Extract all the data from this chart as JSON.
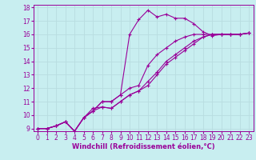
{
  "xlabel": "Windchill (Refroidissement éolien,°C)",
  "line_color": "#990099",
  "bg_color": "#c8eef0",
  "grid_color": "#b8dde0",
  "xlim": [
    -0.5,
    23.5
  ],
  "ylim": [
    8.8,
    18.2
  ],
  "xticks": [
    0,
    1,
    2,
    3,
    4,
    5,
    6,
    7,
    8,
    9,
    10,
    11,
    12,
    13,
    14,
    15,
    16,
    17,
    18,
    19,
    20,
    21,
    22,
    23
  ],
  "yticks": [
    9,
    10,
    11,
    12,
    13,
    14,
    15,
    16,
    17,
    18
  ],
  "lines": [
    {
      "x": [
        0,
        1,
        2,
        3,
        4,
        5,
        6,
        7,
        8,
        9,
        10,
        11,
        12,
        13,
        14,
        15,
        16,
        17,
        18,
        19,
        20,
        21,
        22,
        23
      ],
      "y": [
        9.0,
        9.0,
        9.2,
        9.5,
        8.8,
        9.8,
        10.3,
        11.0,
        11.0,
        11.5,
        16.0,
        17.1,
        17.8,
        17.3,
        17.5,
        17.2,
        17.2,
        16.8,
        16.2,
        15.9,
        16.0,
        16.0,
        16.0,
        16.1
      ]
    },
    {
      "x": [
        0,
        1,
        2,
        3,
        4,
        5,
        6,
        7,
        8,
        9,
        10,
        11,
        12,
        13,
        14,
        15,
        16,
        17,
        18,
        19,
        20,
        21,
        22,
        23
      ],
      "y": [
        9.0,
        9.0,
        9.2,
        9.5,
        8.8,
        9.8,
        10.3,
        11.0,
        11.0,
        11.5,
        12.0,
        12.2,
        13.7,
        14.5,
        15.0,
        15.5,
        15.8,
        16.0,
        16.0,
        16.0,
        16.0,
        16.0,
        16.0,
        16.1
      ]
    },
    {
      "x": [
        0,
        1,
        2,
        3,
        4,
        5,
        6,
        7,
        8,
        9,
        10,
        11,
        12,
        13,
        14,
        15,
        16,
        17,
        18,
        19,
        20,
        21,
        22,
        23
      ],
      "y": [
        9.0,
        9.0,
        9.2,
        9.5,
        8.8,
        9.8,
        10.3,
        10.6,
        10.5,
        11.0,
        11.5,
        11.8,
        12.5,
        13.2,
        14.0,
        14.5,
        15.0,
        15.5,
        15.8,
        16.0,
        16.0,
        16.0,
        16.0,
        16.1
      ]
    },
    {
      "x": [
        0,
        1,
        2,
        3,
        4,
        5,
        6,
        7,
        8,
        9,
        10,
        11,
        12,
        13,
        14,
        15,
        16,
        17,
        18,
        19,
        20,
        21,
        22,
        23
      ],
      "y": [
        9.0,
        9.0,
        9.2,
        9.5,
        8.8,
        9.8,
        10.5,
        10.6,
        10.5,
        11.0,
        11.5,
        11.8,
        12.2,
        13.0,
        13.8,
        14.3,
        14.8,
        15.3,
        15.8,
        16.0,
        16.0,
        16.0,
        16.0,
        16.1
      ]
    }
  ],
  "xlabel_fontsize": 6.0,
  "tick_fontsize": 5.5,
  "linewidth": 0.8,
  "markersize": 3.0
}
